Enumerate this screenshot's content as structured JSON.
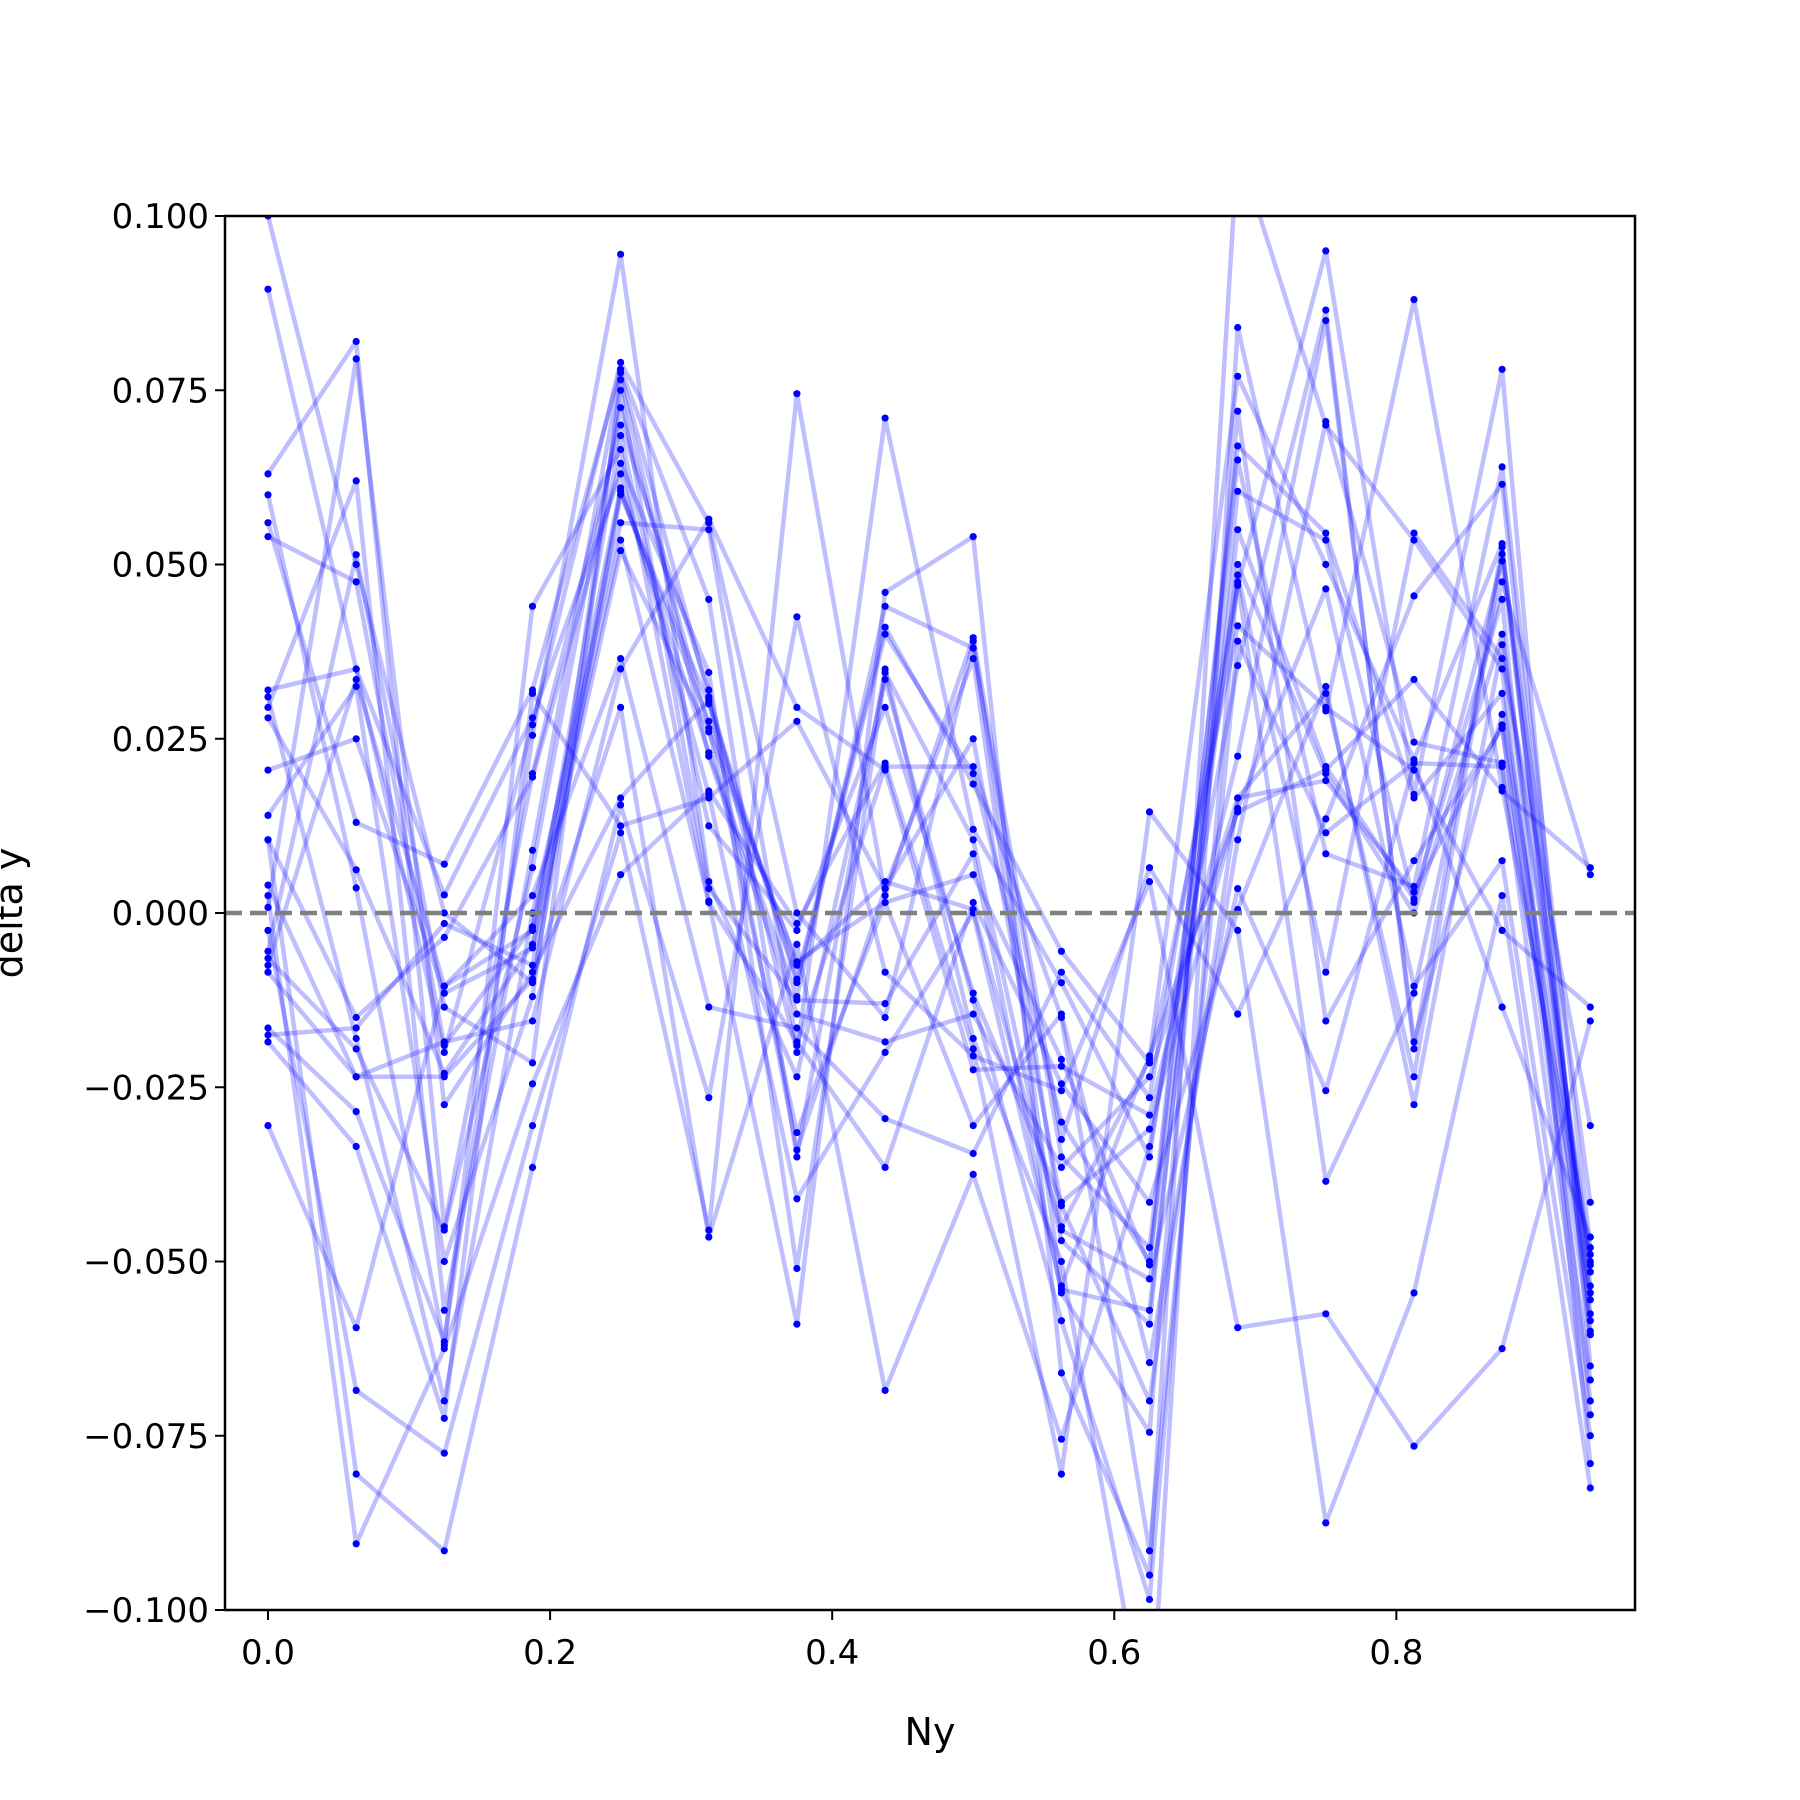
{
  "chart_data": {
    "type": "line",
    "title": "",
    "xlabel": "Ny",
    "ylabel": "delta y",
    "xlim": [
      -0.0305,
      0.9692
    ],
    "ylim": [
      -0.1,
      0.1
    ],
    "x_ticks": [
      {
        "value": 0.0,
        "label": "0.0"
      },
      {
        "value": 0.2,
        "label": "0.2"
      },
      {
        "value": 0.4,
        "label": "0.4"
      },
      {
        "value": 0.6,
        "label": "0.6"
      },
      {
        "value": 0.8,
        "label": "0.8"
      }
    ],
    "y_ticks": [
      {
        "value": 0.1,
        "label": "0.100"
      },
      {
        "value": 0.075,
        "label": "0.075"
      },
      {
        "value": 0.05,
        "label": "0.050"
      },
      {
        "value": 0.025,
        "label": "0.025"
      },
      {
        "value": 0.0,
        "label": "0.000"
      },
      {
        "value": -0.025,
        "label": "−0.025"
      },
      {
        "value": -0.05,
        "label": "−0.050"
      },
      {
        "value": -0.075,
        "label": "−0.075"
      },
      {
        "value": -0.1,
        "label": "−0.100"
      }
    ],
    "x": [
      0.0,
      0.0625,
      0.125,
      0.1875,
      0.25,
      0.3125,
      0.375,
      0.4375,
      0.5,
      0.5625,
      0.625,
      0.6875,
      0.75,
      0.8125,
      0.875,
      0.9375
    ],
    "reference_line": {
      "y": 0.0,
      "style": "dashed",
      "color": "#808080"
    },
    "line_color": "#0000ff",
    "line_opacity": 0.25,
    "marker_color": "#0000ff",
    "grid": false,
    "series": [
      {
        "values": [
          0.1,
          0.05,
          0.0,
          -0.01,
          0.06,
          0.03,
          -0.01,
          0.04,
          0.02,
          -0.03,
          -0.05,
          0.05,
          0.02,
          0.0,
          0.04,
          -0.05
        ]
      },
      {
        "values": [
          0.0895,
          0.035,
          -0.02,
          0.027,
          0.079,
          0.056,
          0.0,
          -0.015,
          0.039,
          -0.045,
          -0.021,
          0.077,
          0.05,
          0.022,
          0.053,
          -0.06
        ]
      },
      {
        "values": [
          0.063,
          0.082,
          -0.045,
          0.02,
          0.07,
          0.032,
          -0.02,
          0.071,
          0.012,
          -0.01,
          -0.035,
          0.047,
          0.095,
          0.017,
          0.078,
          -0.065
        ]
      },
      {
        "values": [
          0.06,
          0.0036,
          -0.062,
          0.044,
          0.0665,
          0.0017,
          -0.059,
          0.046,
          0.054,
          -0.066,
          -0.095,
          0.11,
          0.07,
          0.0535,
          0.035,
          -0.07
        ]
      },
      {
        "values": [
          0.056,
          0.013,
          0.007,
          0.032,
          0.078,
          0.045,
          -0.035,
          0.035,
          -0.018,
          -0.05,
          -0.12,
          0.084,
          0.029,
          0.088,
          0.018,
          -0.049
        ]
      },
      {
        "values": [
          0.054,
          0.0475,
          -0.019,
          -0.002,
          0.061,
          0.023,
          -0.012,
          0.044,
          0.038,
          -0.035,
          -0.048,
          0.065,
          0.0085,
          0.0038,
          0.064,
          -0.048
        ]
      },
      {
        "values": [
          0.032,
          0.035,
          0.0026,
          0.028,
          0.063,
          0.017,
          -0.041,
          -0.02,
          0.0,
          -0.054,
          -0.057,
          0.055,
          0.021,
          0.002,
          0.045,
          -0.079
        ]
      },
      {
        "values": [
          0.031,
          -0.018,
          -0.07,
          0.0,
          0.056,
          0.055,
          -0.019,
          0.021,
          0.021,
          -0.015,
          -0.0915,
          0.039,
          0.0115,
          0.0215,
          0.021,
          -0.072
        ]
      },
      {
        "values": [
          0.0295,
          0.062,
          -0.057,
          0.009,
          0.0775,
          0.031,
          -0.034,
          0.0035,
          0.025,
          -0.042,
          -0.07,
          0.0165,
          0.019,
          0.003,
          0.027,
          -0.067
        ]
      },
      {
        "values": [
          0.028,
          0.0062,
          -0.023,
          -0.0045,
          0.0685,
          0.0125,
          -0.0025,
          0.0295,
          -0.0115,
          -0.0415,
          -0.031,
          0.015,
          0.0465,
          -0.0105,
          0.0075,
          -0.075
        ]
      },
      {
        "values": [
          0.0205,
          0.025,
          -0.0115,
          -0.005,
          0.052,
          0.026,
          -0.007,
          0.0015,
          0.0055,
          -0.021,
          -0.0505,
          0.067,
          0.0545,
          0.0165,
          0.0315,
          -0.0575
        ]
      },
      {
        "values": [
          0.014,
          0.0325,
          -0.05,
          -0.012,
          0.075,
          0.0035,
          -0.0125,
          -0.013,
          0.0085,
          -0.0545,
          -0.0745,
          0.072,
          -0.0155,
          0.0075,
          0.0265,
          -0.0605
        ]
      },
      {
        "values": [
          0.0105,
          -0.015,
          -0.0035,
          0.0195,
          0.0645,
          0.0345,
          -0.051,
          0.0345,
          0.0105,
          -0.047,
          -0.059,
          0.0605,
          0.0535,
          0.0015,
          0.0505,
          -0.0535
        ]
      },
      {
        "values": [
          0.004,
          -0.0235,
          -0.0185,
          -0.0155,
          0.035,
          0.0565,
          0.0295,
          0.0205,
          -0.0225,
          -0.022,
          -0.029,
          0.0225,
          0.085,
          -0.0185,
          0.0285,
          -0.0505
        ]
      },
      {
        "values": [
          0.0008,
          0.0795,
          -0.0275,
          -0.0085,
          0.0165,
          0.0305,
          -0.0095,
          0.041,
          0.0185,
          -0.0055,
          -0.0215,
          0.0412,
          0.0295,
          0.0205,
          -0.0025,
          -0.0135
        ]
      },
      {
        "values": [
          -0.0055,
          0.0514,
          -0.0135,
          -0.0215,
          0.0765,
          0.0225,
          -0.0145,
          -0.0185,
          -0.0145,
          -0.0365,
          -0.0235,
          0.0165,
          0.0315,
          -0.0235,
          0.0515,
          -0.0415
        ]
      },
      {
        "values": [
          -0.0065,
          -0.0195,
          -0.0455,
          0.0065,
          0.0725,
          0.0265,
          -0.0315,
          0.0015,
          -0.0305,
          -0.0145,
          -0.0645,
          0.0105,
          0.0705,
          0.0245,
          0.0215,
          -0.0545
        ]
      },
      {
        "values": [
          -0.0075,
          0.0335,
          -0.0105,
          -0.0025,
          0.0535,
          0.0015,
          -0.0185,
          -0.0365,
          0.0015,
          -0.0245,
          -0.0415,
          0.0005,
          0.0325,
          -0.0275,
          0.0385,
          -0.0515
        ]
      },
      {
        "values": [
          -0.0165,
          -0.0285,
          -0.0615,
          0.0255,
          0.0945,
          0.0045,
          -0.0235,
          0.0335,
          -0.0125,
          -0.0585,
          -0.0985,
          0.0485,
          -0.0085,
          0.0545,
          0.0365,
          -0.0305
        ]
      },
      {
        "values": [
          -0.0175,
          -0.0165,
          -0.0015,
          -0.0075,
          0.0605,
          0.0275,
          -0.0075,
          0.0045,
          0.0005,
          -0.0455,
          -0.0525,
          0.0035,
          -0.0255,
          0.0215,
          -0.0135,
          -0.0465
        ]
      },
      {
        "values": [
          -0.0185,
          -0.0335,
          -0.0725,
          0.0315,
          0.0125,
          0.0165,
          0.0275,
          0.0035,
          0.0365,
          -0.0535,
          -0.0205,
          0.0145,
          0.0205,
          0.0335,
          0.0175,
          0.0065
        ]
      },
      {
        "values": [
          -0.0305,
          -0.0595,
          -0.0105,
          0.0025,
          0.0365,
          -0.0135,
          -0.0165,
          -0.0295,
          -0.0345,
          -0.0085,
          -0.0265,
          0.0475,
          -0.0385,
          -0.0115,
          0.0475,
          0.0055
        ]
      },
      {
        "values": [
          0.0105,
          -0.0805,
          -0.0915,
          -0.0365,
          0.0155,
          -0.0265,
          0.0425,
          -0.0085,
          -0.0205,
          -0.0255,
          0.0045,
          -0.0595,
          -0.0575,
          -0.0765,
          -0.0625,
          -0.0155
        ]
      },
      {
        "values": [
          0.0025,
          -0.0905,
          -0.0625,
          -0.0245,
          0.0055,
          0.0175,
          -0.0015,
          0.0215,
          -0.0195,
          -0.0805,
          0.0145,
          -0.0025,
          -0.0875,
          -0.0545,
          0.0025,
          -0.0825
        ]
      },
      {
        "values": [
          -0.0085,
          -0.0235,
          -0.0235,
          -0.0095,
          0.0295,
          -0.0465,
          -0.0045,
          -0.0685,
          -0.0375,
          -0.0755,
          -0.0335,
          0.0355,
          0.0865,
          -0.0195,
          0.0525,
          -0.0555
        ]
      },
      {
        "values": [
          -0.0025,
          -0.0685,
          -0.0775,
          -0.0305,
          0.0115,
          -0.0455,
          0.0745,
          0.0025,
          0.0395,
          -0.0325,
          0.0065,
          -0.0145,
          0.0135,
          0.0455,
          0.0615,
          -0.0585
        ]
      }
    ]
  }
}
